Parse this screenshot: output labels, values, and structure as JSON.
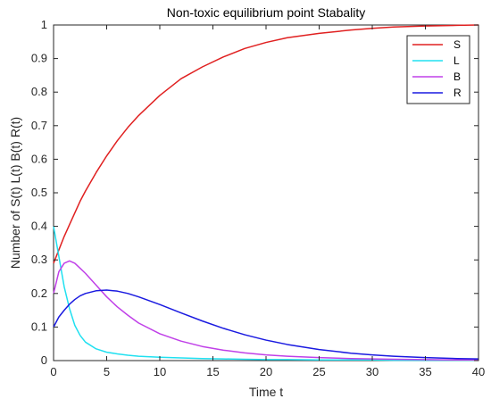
{
  "chart_data": {
    "type": "line",
    "title": "Non-toxic equilibrium point Stabality",
    "xlabel": "Time t",
    "ylabel": "Number of S(t) L(t) B(t) R(t)",
    "xlim": [
      0,
      40
    ],
    "ylim": [
      0,
      1
    ],
    "xticks": [
      0,
      5,
      10,
      15,
      20,
      25,
      30,
      35,
      40
    ],
    "yticks": [
      0,
      0.1,
      0.2,
      0.3,
      0.4,
      0.5,
      0.6,
      0.7,
      0.8,
      0.9,
      1
    ],
    "grid": false,
    "legend_position": "top-right",
    "x": [
      0,
      0.5,
      1,
      1.5,
      2,
      2.5,
      3,
      4,
      5,
      6,
      7,
      8,
      10,
      12,
      14,
      16,
      18,
      20,
      22,
      25,
      28,
      30,
      32,
      35,
      38,
      40
    ],
    "series": [
      {
        "name": "S",
        "color": "#e02020",
        "values": [
          0.29,
          0.33,
          0.37,
          0.405,
          0.44,
          0.475,
          0.505,
          0.56,
          0.61,
          0.655,
          0.695,
          0.73,
          0.79,
          0.84,
          0.875,
          0.905,
          0.93,
          0.948,
          0.962,
          0.975,
          0.985,
          0.99,
          0.994,
          0.997,
          0.999,
          1.0
        ]
      },
      {
        "name": "L",
        "color": "#20e0f0",
        "values": [
          0.4,
          0.31,
          0.22,
          0.155,
          0.105,
          0.075,
          0.055,
          0.035,
          0.025,
          0.02,
          0.016,
          0.013,
          0.01,
          0.008,
          0.006,
          0.005,
          0.004,
          0.003,
          0.003,
          0.002,
          0.002,
          0.002,
          0.001,
          0.001,
          0.001,
          0.001
        ]
      },
      {
        "name": "B",
        "color": "#c040e8",
        "values": [
          0.2,
          0.265,
          0.29,
          0.297,
          0.29,
          0.275,
          0.26,
          0.225,
          0.19,
          0.16,
          0.135,
          0.112,
          0.08,
          0.058,
          0.042,
          0.031,
          0.023,
          0.017,
          0.013,
          0.009,
          0.006,
          0.005,
          0.004,
          0.003,
          0.002,
          0.002
        ]
      },
      {
        "name": "R",
        "color": "#1a1ae0",
        "values": [
          0.1,
          0.13,
          0.15,
          0.168,
          0.182,
          0.193,
          0.2,
          0.208,
          0.21,
          0.207,
          0.2,
          0.19,
          0.167,
          0.142,
          0.118,
          0.096,
          0.077,
          0.061,
          0.048,
          0.033,
          0.022,
          0.017,
          0.013,
          0.009,
          0.006,
          0.005
        ]
      }
    ]
  }
}
